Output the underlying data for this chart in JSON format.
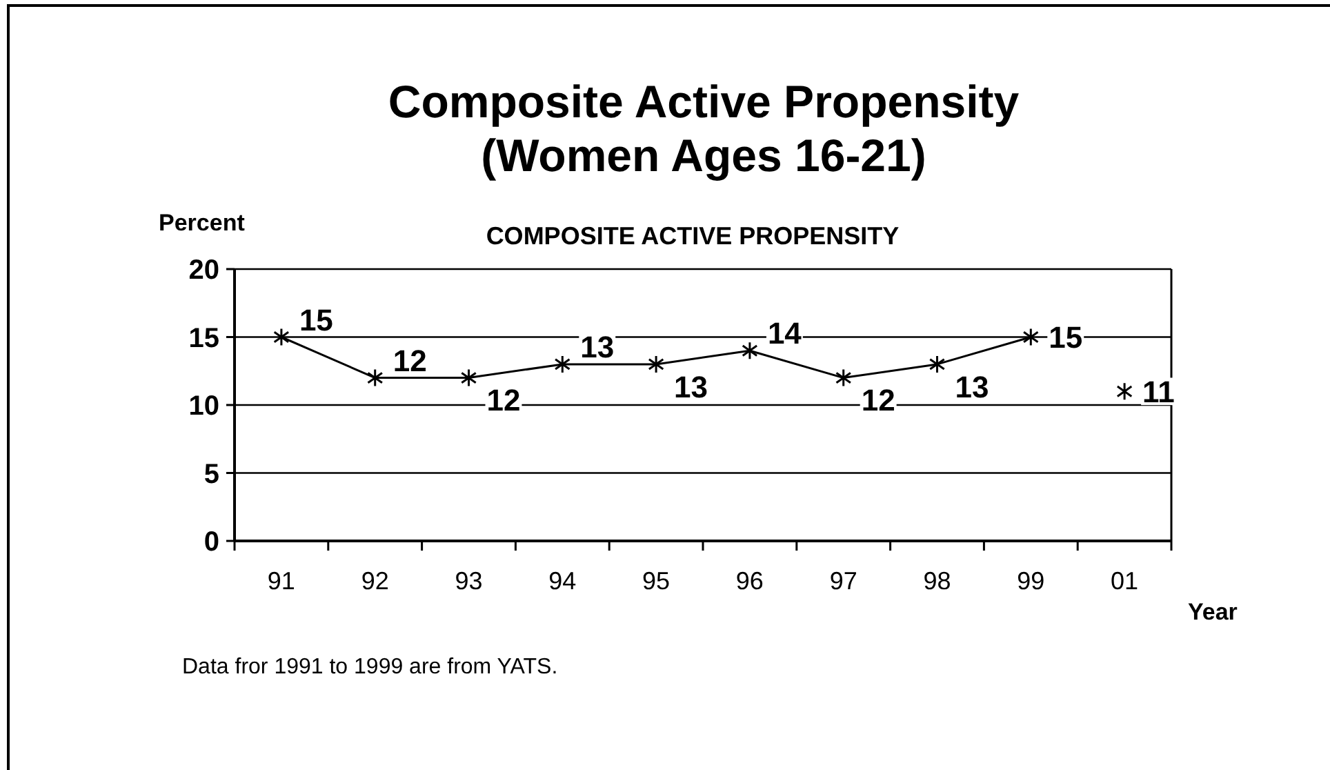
{
  "chart_data": {
    "type": "line",
    "title": "Composite Active Propensity\n(Women Ages 16-21)",
    "subtitle": "COMPOSITE ACTIVE PROPENSITY",
    "ylabel": "Percent",
    "xlabel": "Year",
    "annotations": [
      "Data fror 1991 to 1999 are from YATS."
    ],
    "categories": [
      "91",
      "92",
      "93",
      "94",
      "95",
      "96",
      "97",
      "98",
      "99",
      "01"
    ],
    "series": [
      {
        "color": "#000000",
        "values": [
          15,
          12,
          12,
          13,
          13,
          14,
          12,
          13,
          15,
          null
        ]
      },
      {
        "type": "scatter",
        "color": "#000000",
        "values": [
          null,
          null,
          null,
          null,
          null,
          null,
          null,
          null,
          null,
          11
        ]
      }
    ],
    "ylim": [
      0,
      20
    ],
    "yticks": [
      0,
      5,
      10,
      15,
      20
    ],
    "grid": "y",
    "marker": "cross",
    "data_labels": true
  }
}
